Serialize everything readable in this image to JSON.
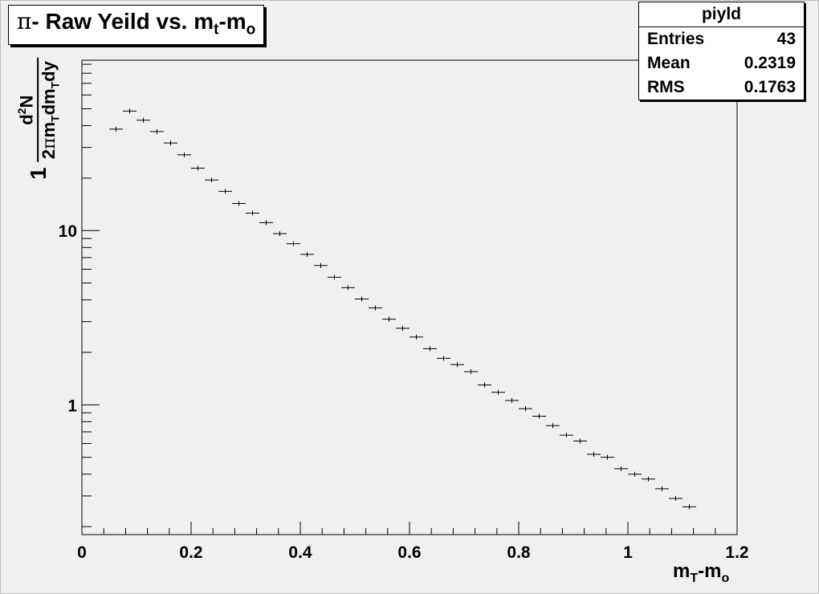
{
  "title": {
    "prefix": "π",
    "text": "- Raw Yeild vs. m",
    "sub1": "t",
    "mid": "-m",
    "sub2": "o"
  },
  "stats": {
    "name": "piyld",
    "rows": [
      {
        "label": "Entries",
        "value": "43"
      },
      {
        "label": "Mean",
        "value": "0.2319"
      },
      {
        "label": "RMS",
        "value": "0.1763"
      }
    ]
  },
  "xlabel": {
    "main": "m",
    "sub": "T",
    "rest": "-m",
    "sub2": "o"
  },
  "ylabel": {
    "one": "1",
    "num_d": "d",
    "num_sup": "2",
    "num_N": "N",
    "den_a": "2",
    "den_pi": "π",
    "den_m": "m",
    "den_sub1": "T",
    "den_dm": "dm",
    "den_sub2": "T",
    "den_dy": "dy"
  },
  "colors": {
    "frame_bg": "#f0f0f0",
    "plot_bg": "#f0f0f0",
    "markers": "#000000"
  },
  "chart_data": {
    "type": "scatter",
    "style": "histogram-errorbars",
    "x_tick_labels": [
      "0",
      "0.2",
      "0.4",
      "0.6",
      "0.8",
      "1",
      "1.2"
    ],
    "y_tick_labels": [
      "1",
      "10"
    ],
    "xlim": [
      0,
      1.2
    ],
    "ylim": [
      0.18,
      95
    ],
    "ylog": true,
    "bin_width": 0.025,
    "x": [
      0.0625,
      0.0875,
      0.1125,
      0.1375,
      0.1625,
      0.1875,
      0.2125,
      0.2375,
      0.2625,
      0.2875,
      0.3125,
      0.3375,
      0.3625,
      0.3875,
      0.4125,
      0.4375,
      0.4625,
      0.4875,
      0.5125,
      0.5375,
      0.5625,
      0.5875,
      0.6125,
      0.6375,
      0.6625,
      0.6875,
      0.7125,
      0.7375,
      0.7625,
      0.7875,
      0.8125,
      0.8375,
      0.8625,
      0.8875,
      0.9125,
      0.9375,
      0.9625,
      0.9875,
      1.0125,
      1.0375,
      1.0625,
      1.0875,
      1.1125
    ],
    "y": [
      38.2,
      48.5,
      43.0,
      37.0,
      31.8,
      27.2,
      22.8,
      19.5,
      16.8,
      14.3,
      12.6,
      11.1,
      9.6,
      8.4,
      7.3,
      6.3,
      5.4,
      4.7,
      4.05,
      3.6,
      3.1,
      2.75,
      2.45,
      2.1,
      1.85,
      1.7,
      1.55,
      1.3,
      1.18,
      1.06,
      0.95,
      0.86,
      0.76,
      0.67,
      0.62,
      0.52,
      0.5,
      0.43,
      0.4,
      0.375,
      0.33,
      0.29,
      0.26
    ],
    "grid": false,
    "legend": "top-right"
  }
}
